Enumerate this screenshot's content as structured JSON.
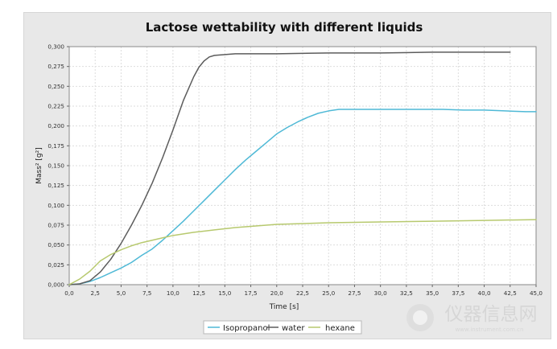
{
  "chart_data": {
    "type": "line",
    "title": "Lactose wettability with different liquids",
    "xlabel": "Time [s]",
    "ylabel": "Mass² [g²]",
    "xlim": [
      0,
      45
    ],
    "ylim": [
      0,
      0.3
    ],
    "x_ticks": [
      "0,0",
      "2,5",
      "5,0",
      "7,5",
      "10,0",
      "12,5",
      "15,0",
      "17,5",
      "20,0",
      "22,5",
      "25,0",
      "27,5",
      "30,0",
      "32,5",
      "35,0",
      "37,5",
      "40,0",
      "42,5",
      "45,0"
    ],
    "y_ticks": [
      "0,000",
      "0,025",
      "0,050",
      "0,075",
      "0,100",
      "0,125",
      "0,150",
      "0,175",
      "0,200",
      "0,225",
      "0,250",
      "0,275",
      "0,300"
    ],
    "grid": true,
    "legend_position": "bottom",
    "series": [
      {
        "name": "Isopropanol",
        "color": "#4fb9d6",
        "x": [
          0,
          1,
          2,
          3,
          4,
          5,
          6,
          7,
          8,
          9,
          10,
          11,
          12,
          13,
          14,
          15,
          16,
          17,
          18,
          19,
          20,
          21,
          22,
          23,
          24,
          25,
          26,
          28,
          30,
          32,
          34,
          36,
          38,
          40,
          42,
          44,
          45
        ],
        "y": [
          0,
          0.001,
          0.004,
          0.009,
          0.015,
          0.021,
          0.028,
          0.037,
          0.045,
          0.056,
          0.068,
          0.08,
          0.093,
          0.106,
          0.119,
          0.132,
          0.145,
          0.157,
          0.168,
          0.179,
          0.19,
          0.198,
          0.205,
          0.211,
          0.216,
          0.219,
          0.221,
          0.221,
          0.221,
          0.221,
          0.221,
          0.221,
          0.22,
          0.22,
          0.219,
          0.218,
          0.218
        ]
      },
      {
        "name": "water",
        "color": "#5c5c5c",
        "x": [
          0,
          1,
          2,
          3,
          4,
          5,
          6,
          7,
          8,
          9,
          10,
          11,
          12,
          12.5,
          13,
          13.5,
          14,
          15,
          16,
          18,
          20,
          25,
          30,
          35,
          40,
          42.5
        ],
        "y": [
          0,
          0.001,
          0.005,
          0.016,
          0.032,
          0.052,
          0.075,
          0.1,
          0.128,
          0.16,
          0.195,
          0.232,
          0.262,
          0.274,
          0.282,
          0.287,
          0.289,
          0.29,
          0.291,
          0.291,
          0.291,
          0.292,
          0.292,
          0.293,
          0.293,
          0.293
        ]
      },
      {
        "name": "hexane",
        "color": "#b7c96e",
        "x": [
          0,
          1,
          2,
          3,
          4,
          5,
          6,
          7,
          8,
          9,
          10,
          12,
          14,
          16,
          18,
          20,
          25,
          30,
          35,
          40,
          45
        ],
        "y": [
          0,
          0.007,
          0.017,
          0.03,
          0.038,
          0.044,
          0.049,
          0.053,
          0.056,
          0.059,
          0.062,
          0.066,
          0.069,
          0.072,
          0.074,
          0.076,
          0.078,
          0.079,
          0.08,
          0.081,
          0.082
        ]
      }
    ]
  },
  "watermark": {
    "text": "仪器信息网",
    "subtext": "www.instrument.com.cn"
  }
}
